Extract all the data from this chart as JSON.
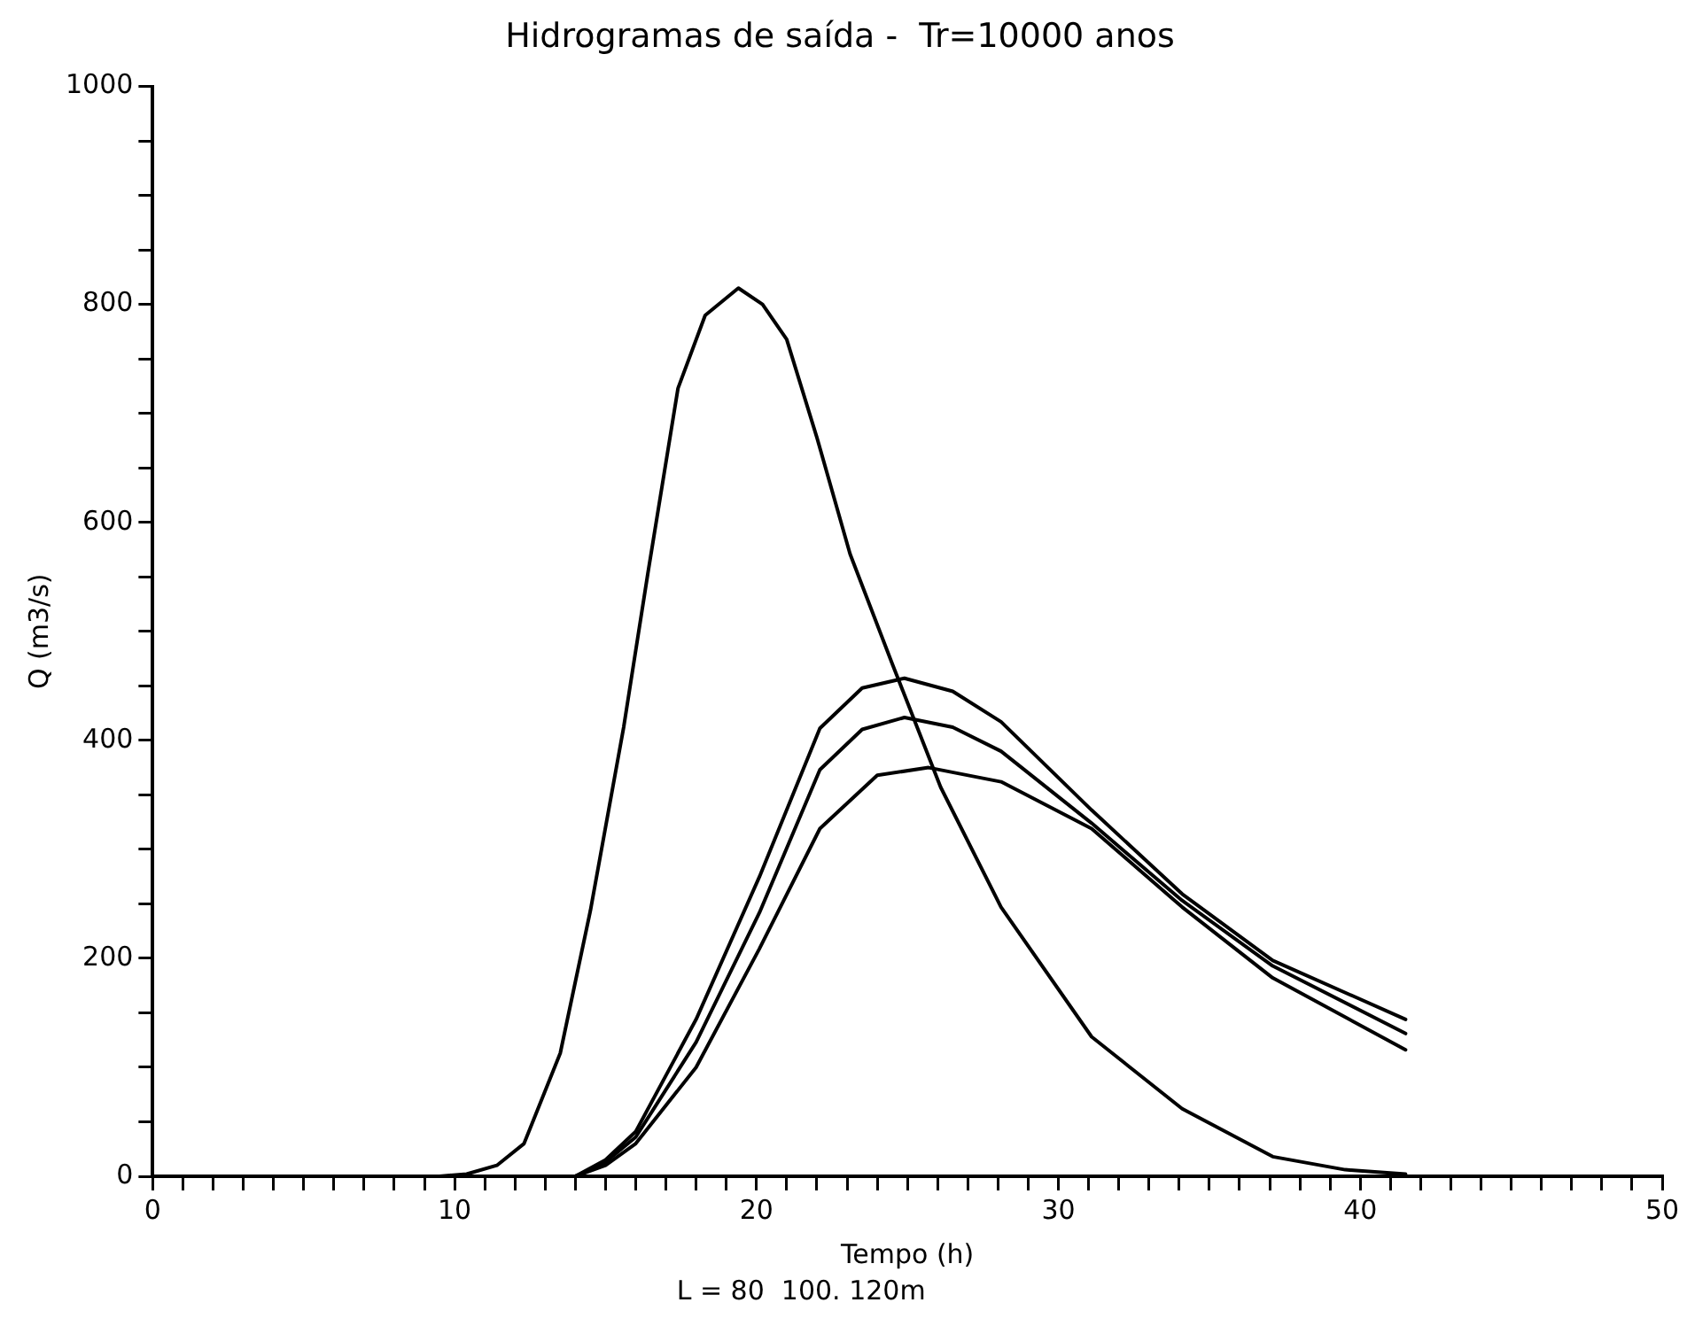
{
  "chart_data": {
    "type": "line",
    "title": "Hidrogramas de saída -  Tr=10000 anos",
    "xlabel": "Tempo (h)",
    "ylabel": "Q (m3/s)",
    "annotations": [
      "L = 80  100. 120m"
    ],
    "xlim": [
      0,
      50
    ],
    "ylim": [
      0,
      1000
    ],
    "xticks": [
      0,
      {
        "value": 1,
        "label": null
      },
      {
        "value": 2,
        "label": null
      },
      {
        "value": 3,
        "label": null
      },
      {
        "value": 4,
        "label": null
      },
      {
        "value": 5,
        "label": null
      },
      {
        "value": 6,
        "label": null
      },
      {
        "value": 7,
        "label": null
      },
      {
        "value": 8,
        "label": null
      },
      {
        "value": 9,
        "label": null
      },
      10,
      {
        "value": 11,
        "label": null
      },
      {
        "value": 12,
        "label": null
      },
      {
        "value": 13,
        "label": null
      },
      {
        "value": 14,
        "label": null
      },
      {
        "value": 15,
        "label": null
      },
      {
        "value": 16,
        "label": null
      },
      {
        "value": 17,
        "label": null
      },
      {
        "value": 18,
        "label": null
      },
      {
        "value": 19,
        "label": null
      },
      20,
      {
        "value": 21,
        "label": null
      },
      {
        "value": 22,
        "label": null
      },
      {
        "value": 23,
        "label": null
      },
      {
        "value": 24,
        "label": null
      },
      {
        "value": 25,
        "label": null
      },
      {
        "value": 26,
        "label": null
      },
      {
        "value": 27,
        "label": null
      },
      {
        "value": 28,
        "label": null
      },
      {
        "value": 29,
        "label": null
      },
      30,
      {
        "value": 31,
        "label": null
      },
      {
        "value": 32,
        "label": null
      },
      {
        "value": 33,
        "label": null
      },
      {
        "value": 34,
        "label": null
      },
      {
        "value": 35,
        "label": null
      },
      {
        "value": 36,
        "label": null
      },
      {
        "value": 37,
        "label": null
      },
      {
        "value": 38,
        "label": null
      },
      {
        "value": 39,
        "label": null
      },
      40,
      {
        "value": 41,
        "label": null
      },
      {
        "value": 42,
        "label": null
      },
      {
        "value": 43,
        "label": null
      },
      {
        "value": 44,
        "label": null
      },
      {
        "value": 45,
        "label": null
      },
      {
        "value": 46,
        "label": null
      },
      {
        "value": 47,
        "label": null
      },
      {
        "value": 48,
        "label": null
      },
      {
        "value": 49,
        "label": null
      },
      50
    ],
    "yticks": [
      0,
      {
        "value": 50,
        "label": null
      },
      {
        "value": 100,
        "label": null
      },
      {
        "value": 150,
        "label": null
      },
      200,
      {
        "value": 250,
        "label": null
      },
      {
        "value": 300,
        "label": null
      },
      {
        "value": 350,
        "label": null
      },
      400,
      {
        "value": 450,
        "label": null
      },
      {
        "value": 500,
        "label": null
      },
      {
        "value": 550,
        "label": null
      },
      600,
      {
        "value": 650,
        "label": null
      },
      {
        "value": 700,
        "label": null
      },
      {
        "value": 750,
        "label": null
      },
      800,
      {
        "value": 850,
        "label": null
      },
      {
        "value": 900,
        "label": null
      },
      {
        "value": 950,
        "label": null
      },
      1000
    ],
    "grid": false,
    "legend": false,
    "marker": "none",
    "line_style": "solid",
    "series": [
      {
        "color": "#000000",
        "x": [
          0,
          9.5,
          10.4,
          11.4,
          12.3,
          13.5,
          14.5,
          15.6,
          16.4,
          17.4,
          18.3,
          19.4,
          20.2,
          21.0,
          22.0,
          23.1,
          24.5,
          26.1,
          28.1,
          31.1,
          34.1,
          37.1,
          39.5,
          41.5
        ],
        "values": [
          0,
          0,
          2,
          10,
          30,
          113,
          244,
          412,
          553,
          723,
          790,
          815,
          800,
          768,
          678,
          571,
          470,
          357,
          247,
          128,
          62,
          18,
          6,
          2
        ]
      },
      {
        "color": "#000000",
        "x": [
          0,
          14.0,
          15.0,
          16.0,
          18.0,
          20.1,
          22.1,
          23.5,
          24.9,
          26.5,
          28.1,
          31.1,
          34.1,
          37.1,
          41.5
        ],
        "values": [
          0,
          0,
          15,
          41,
          144,
          275,
          411,
          448,
          457,
          445,
          417,
          336,
          259,
          198,
          144
        ]
      },
      {
        "color": "#000000",
        "x": [
          0,
          14.0,
          15.0,
          16.0,
          18.0,
          20.1,
          22.1,
          23.5,
          24.9,
          26.5,
          28.1,
          31.1,
          34.1,
          37.1,
          41.5
        ],
        "values": [
          0,
          0,
          13,
          36,
          123,
          242,
          373,
          410,
          421,
          412,
          390,
          324,
          253,
          193,
          131
        ]
      },
      {
        "color": "#000000",
        "x": [
          0,
          14.0,
          15.0,
          16.0,
          18.0,
          20.1,
          22.1,
          24.0,
          25.7,
          28.1,
          31.1,
          34.1,
          37.1,
          41.5
        ],
        "values": [
          0,
          0,
          10,
          30,
          100,
          209,
          319,
          368,
          375,
          362,
          319,
          247,
          182,
          116
        ]
      }
    ]
  }
}
